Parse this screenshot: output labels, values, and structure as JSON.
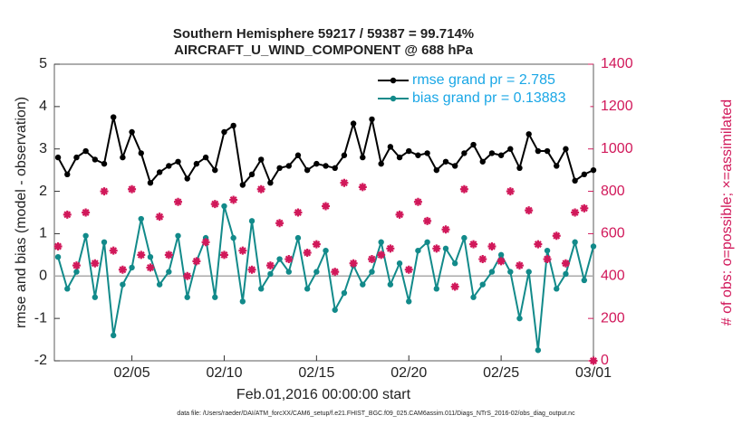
{
  "chart_data": {
    "type": "line",
    "title": "Southern Hemisphere 59217 / 59387 = 99.714%",
    "subtitle": "AIRCRAFT_U_WIND_COMPONENT @ 688 hPa",
    "xlabel": "Feb.01,2016 00:00:00 start",
    "ylabel": "rmse and bias (model - observation)",
    "y2label": "# of obs: o=possible; ×=assimilated",
    "footnote": "data file: /Users/raeder/DAI/ATM_forcXX/CAM6_setup/f.e21.FHIST_BGC.f09_025.CAM6assim.011/Diags_NTrS_2016-02/obs_diag_output.nc",
    "x": [
      1,
      1.5,
      2,
      2.5,
      3,
      3.5,
      4,
      4.5,
      5,
      5.5,
      6,
      6.5,
      7,
      7.5,
      8,
      8.5,
      9,
      9.5,
      10,
      10.5,
      11,
      11.5,
      12,
      12.5,
      13,
      13.5,
      14,
      14.5,
      15,
      15.5,
      16,
      16.5,
      17,
      17.5,
      18,
      18.5,
      19,
      19.5,
      20,
      20.5,
      21,
      21.5,
      22,
      22.5,
      23,
      23.5,
      24,
      24.5,
      25,
      25.5,
      26,
      26.5,
      27,
      27.5,
      28,
      28.5,
      29,
      29.5,
      30
    ],
    "xlim": [
      0.8,
      30
    ],
    "xticks": [
      {
        "value": 5,
        "label": "02/05"
      },
      {
        "value": 10,
        "label": "02/10"
      },
      {
        "value": 15,
        "label": "02/15"
      },
      {
        "value": 20,
        "label": "02/20"
      },
      {
        "value": 25,
        "label": "02/25"
      },
      {
        "value": 30,
        "label": "03/01"
      }
    ],
    "ylim": [
      -2,
      5
    ],
    "yticks": [
      -2,
      -1,
      0,
      1,
      2,
      3,
      4,
      5
    ],
    "y2lim": [
      0,
      1400
    ],
    "y2ticks": [
      0,
      200,
      400,
      600,
      800,
      1000,
      1200,
      1400
    ],
    "legend": "upper right",
    "series": [
      {
        "name": "rmse grand pr = 2.785",
        "color": "#000000",
        "marker": "circle",
        "values": [
          2.8,
          2.4,
          2.8,
          2.95,
          2.75,
          2.65,
          3.75,
          2.8,
          3.4,
          2.9,
          2.2,
          2.45,
          2.6,
          2.7,
          2.3,
          2.65,
          2.8,
          2.5,
          3.4,
          3.55,
          2.15,
          2.4,
          2.75,
          2.2,
          2.55,
          2.6,
          2.85,
          2.5,
          2.65,
          2.6,
          2.55,
          2.85,
          3.6,
          2.8,
          3.7,
          2.65,
          3.05,
          2.8,
          2.95,
          2.85,
          2.9,
          2.5,
          2.7,
          2.6,
          2.9,
          3.1,
          2.7,
          2.9,
          2.85,
          3.0,
          2.55,
          3.35,
          2.95,
          2.95,
          2.6,
          3.0,
          2.25,
          2.4,
          2.5
        ]
      },
      {
        "name": "bias grand pr = 0.13883",
        "color": "#128a8a",
        "marker": "circle",
        "values": [
          0.45,
          -0.3,
          0.1,
          0.95,
          -0.5,
          0.8,
          -1.4,
          -0.2,
          0.2,
          1.35,
          0.45,
          -0.2,
          0.1,
          0.95,
          -0.5,
          0.35,
          0.9,
          -0.5,
          1.65,
          0.9,
          -0.6,
          1.3,
          -0.3,
          0.05,
          0.4,
          0.1,
          0.9,
          -0.3,
          0.1,
          0.6,
          -0.8,
          -0.4,
          0.25,
          -0.2,
          0.1,
          0.8,
          -0.2,
          0.3,
          -0.6,
          0.6,
          0.8,
          -0.3,
          0.65,
          0.3,
          0.9,
          -0.5,
          -0.2,
          0.1,
          0.5,
          0.1,
          -1.0,
          0.1,
          -1.75,
          0.6,
          -0.3,
          0.05,
          0.8,
          -0.1,
          0.7
        ]
      },
      {
        "color": "#d1185a",
        "marker": "star",
        "axis": "y2",
        "values": [
          540,
          690,
          450,
          700,
          460,
          800,
          520,
          430,
          810,
          500,
          440,
          680,
          500,
          750,
          400,
          470,
          560,
          740,
          500,
          760,
          520,
          430,
          810,
          450,
          650,
          480,
          700,
          510,
          550,
          730,
          420,
          840,
          460,
          820,
          480,
          500,
          530,
          690,
          430,
          750,
          660,
          530,
          620,
          350,
          810,
          550,
          480,
          540,
          470,
          800,
          450,
          710,
          550,
          480,
          590,
          460,
          700,
          720,
          0
        ]
      }
    ]
  }
}
